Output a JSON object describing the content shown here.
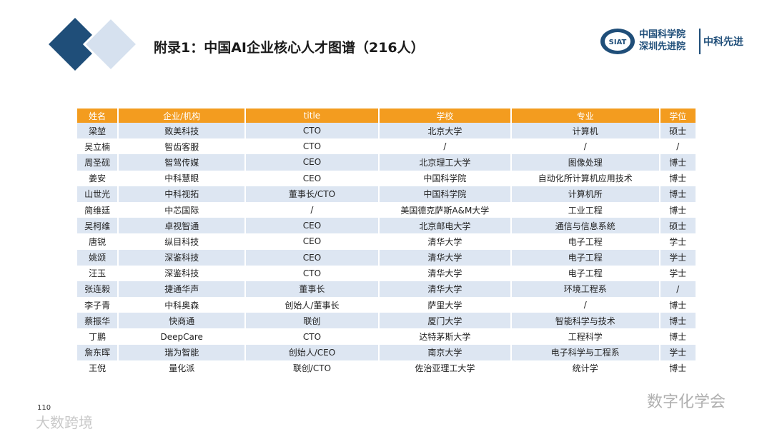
{
  "header": {
    "title": "附录1：中国AI企业核心人才图谱（216人）",
    "logo": {
      "badge": "SIAT",
      "line1": "中国科学院",
      "line2": "深圳先进院",
      "brand": "中科先进"
    }
  },
  "table": {
    "columns": [
      "姓名",
      "企业/机构",
      "title",
      "学校",
      "专业",
      "学位"
    ],
    "rows": [
      [
        "梁堃",
        "致美科技",
        "CTO",
        "北京大学",
        "计算机",
        "硕士"
      ],
      [
        "吴立楠",
        "智齿客服",
        "CTO",
        "/",
        "/",
        "/"
      ],
      [
        "周圣砚",
        "智驾传媒",
        "CEO",
        "北京理工大学",
        "图像处理",
        "博士"
      ],
      [
        "姜安",
        "中科慧眼",
        "CEO",
        "中国科学院",
        "自动化所计算机应用技术",
        "博士"
      ],
      [
        "山世光",
        "中科视拓",
        "董事长/CTO",
        "中国科学院",
        "计算机所",
        "博士"
      ],
      [
        "简维廷",
        "中芯国际",
        "/",
        "美国德克萨斯A&M大学",
        "工业工程",
        "博士"
      ],
      [
        "吴柯维",
        "卓视智通",
        "CEO",
        "北京邮电大学",
        "通信与信息系统",
        "硕士"
      ],
      [
        "唐锐",
        "纵目科技",
        "CEO",
        "清华大学",
        "电子工程",
        "学士"
      ],
      [
        "姚颂",
        "深鉴科技",
        "CEO",
        "清华大学",
        "电子工程",
        "学士"
      ],
      [
        "汪玉",
        "深鉴科技",
        "CTO",
        "清华大学",
        "电子工程",
        "学士"
      ],
      [
        "张连毅",
        "捷通华声",
        "董事长",
        "清华大学",
        "环境工程系",
        "/"
      ],
      [
        "李子青",
        "中科奥森",
        "创始人/董事长",
        "萨里大学",
        "/",
        "博士"
      ],
      [
        "蔡振华",
        "快商通",
        "联创",
        "厦门大学",
        "智能科学与技术",
        "博士"
      ],
      [
        "丁鹏",
        "DeepCare",
        "CTO",
        "达特茅斯大学",
        "工程科学",
        "博士"
      ],
      [
        "詹东晖",
        "瑞为智能",
        "创始人/CEO",
        "南京大学",
        "电子科学与工程系",
        "学士"
      ],
      [
        "王倪",
        "量化派",
        "联创/CTO",
        "佐治亚理工大学",
        "统计学",
        "博士"
      ]
    ]
  },
  "footer": {
    "page": "110",
    "watermark_right": "数字化学会",
    "watermark_left": "大数跨境"
  }
}
